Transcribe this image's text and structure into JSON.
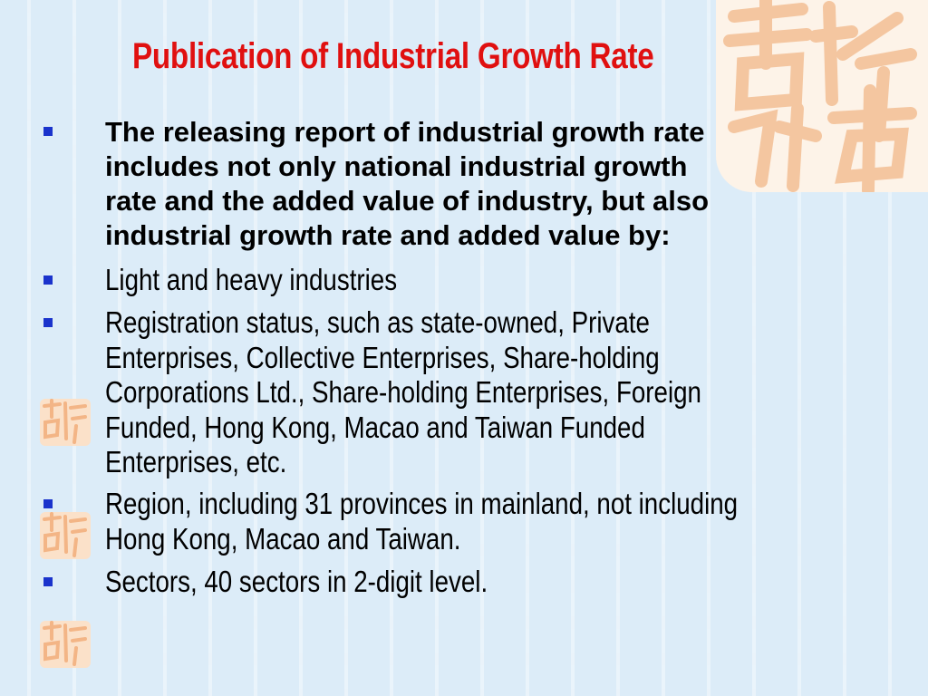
{
  "slide": {
    "title": "Publication of Industrial Growth Rate",
    "colors": {
      "title": "#e01010",
      "bullet_marker": "#1a33cc",
      "background": "#dcecf8",
      "seal": "#f6c9a5"
    },
    "bullets": [
      {
        "style": "bold",
        "lines": [
          "The releasing report of industrial growth rate",
          "includes not only national industrial growth",
          "rate and the added value of industry, but also",
          "industrial growth rate and added value by:"
        ]
      },
      {
        "style": "normal",
        "lines": [
          "Light and heavy industries"
        ]
      },
      {
        "style": "normal",
        "lines": [
          "Registration status, such as state-owned, Private",
          "Enterprises, Collective Enterprises, Share-holding",
          "Corporations Ltd., Share-holding Enterprises, Foreign",
          "Funded, Hong Kong, Macao and Taiwan Funded",
          "Enterprises, etc."
        ]
      },
      {
        "style": "normal",
        "lines": [
          "Region, including 31 provinces in mainland, not including",
          "Hong Kong, Macao and Taiwan."
        ]
      },
      {
        "style": "normal",
        "lines": [
          "Sectors, 40 sectors in 2-digit level."
        ]
      }
    ],
    "decorations": [
      "seal-logo-large",
      "seal-logo-small"
    ]
  }
}
